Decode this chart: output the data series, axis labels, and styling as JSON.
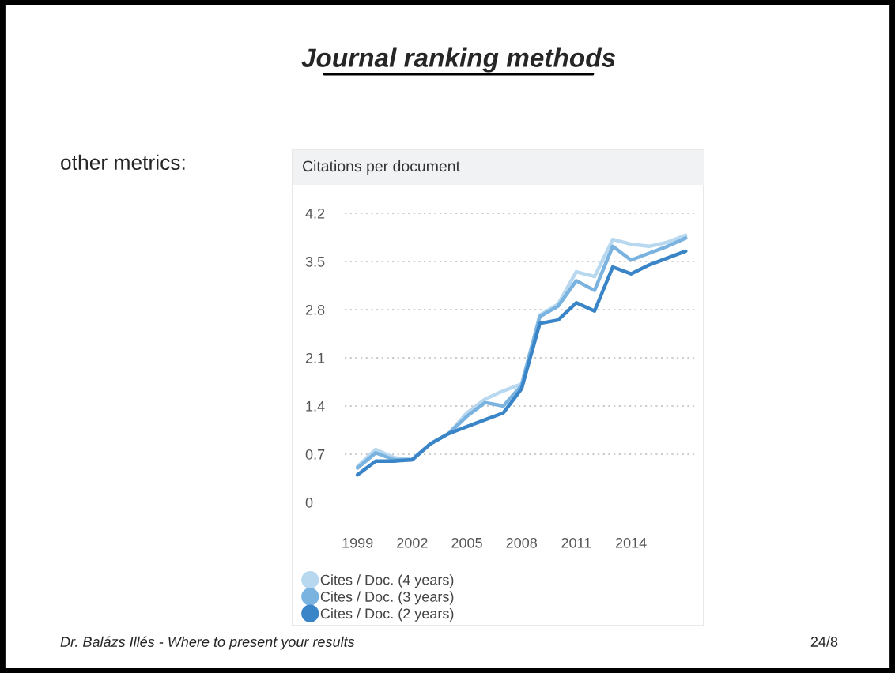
{
  "chart_data": {
    "type": "line",
    "title": "Journal ranking methods",
    "subtitle": "Citations per document",
    "annotations": [
      "other metrics:",
      "Dr. Balázs Illés - Where to present your results",
      "24/8"
    ],
    "x": [
      1999,
      2000,
      2001,
      2002,
      2003,
      2004,
      2005,
      2006,
      2007,
      2008,
      2009,
      2010,
      2011,
      2012,
      2013,
      2014,
      2015,
      2016,
      2017
    ],
    "series": [
      {
        "name": "Cites / Doc. (4 years)",
        "color": "#b8d8f0",
        "values": [
          0.52,
          0.77,
          0.65,
          0.62,
          0.85,
          1.0,
          1.3,
          1.5,
          1.62,
          1.72,
          2.72,
          2.88,
          3.35,
          3.28,
          3.82,
          3.75,
          3.72,
          3.78,
          3.88
        ]
      },
      {
        "name": "Cites / Doc. (3 years)",
        "color": "#7ab3e0",
        "values": [
          0.5,
          0.72,
          0.62,
          0.62,
          0.85,
          1.0,
          1.25,
          1.45,
          1.4,
          1.7,
          2.7,
          2.85,
          3.22,
          3.08,
          3.72,
          3.52,
          3.62,
          3.72,
          3.84
        ]
      },
      {
        "name": "Cites / Doc. (2 years)",
        "color": "#3a85c8",
        "values": [
          0.4,
          0.6,
          0.6,
          0.62,
          0.85,
          1.0,
          1.1,
          1.2,
          1.3,
          1.65,
          2.6,
          2.65,
          2.9,
          2.78,
          3.42,
          3.32,
          3.45,
          3.55,
          3.65
        ]
      }
    ],
    "xlim": [
      1998.3,
      2017.5
    ],
    "ylim": [
      0,
      4.2
    ],
    "xticks": [
      1999,
      2002,
      2005,
      2008,
      2011,
      2014
    ],
    "yticks": [
      0,
      0.7,
      1.4,
      2.1,
      2.8,
      3.5,
      4.2
    ],
    "grid": "y",
    "legend": "bottom",
    "marker": "none",
    "line_style": "solid"
  }
}
